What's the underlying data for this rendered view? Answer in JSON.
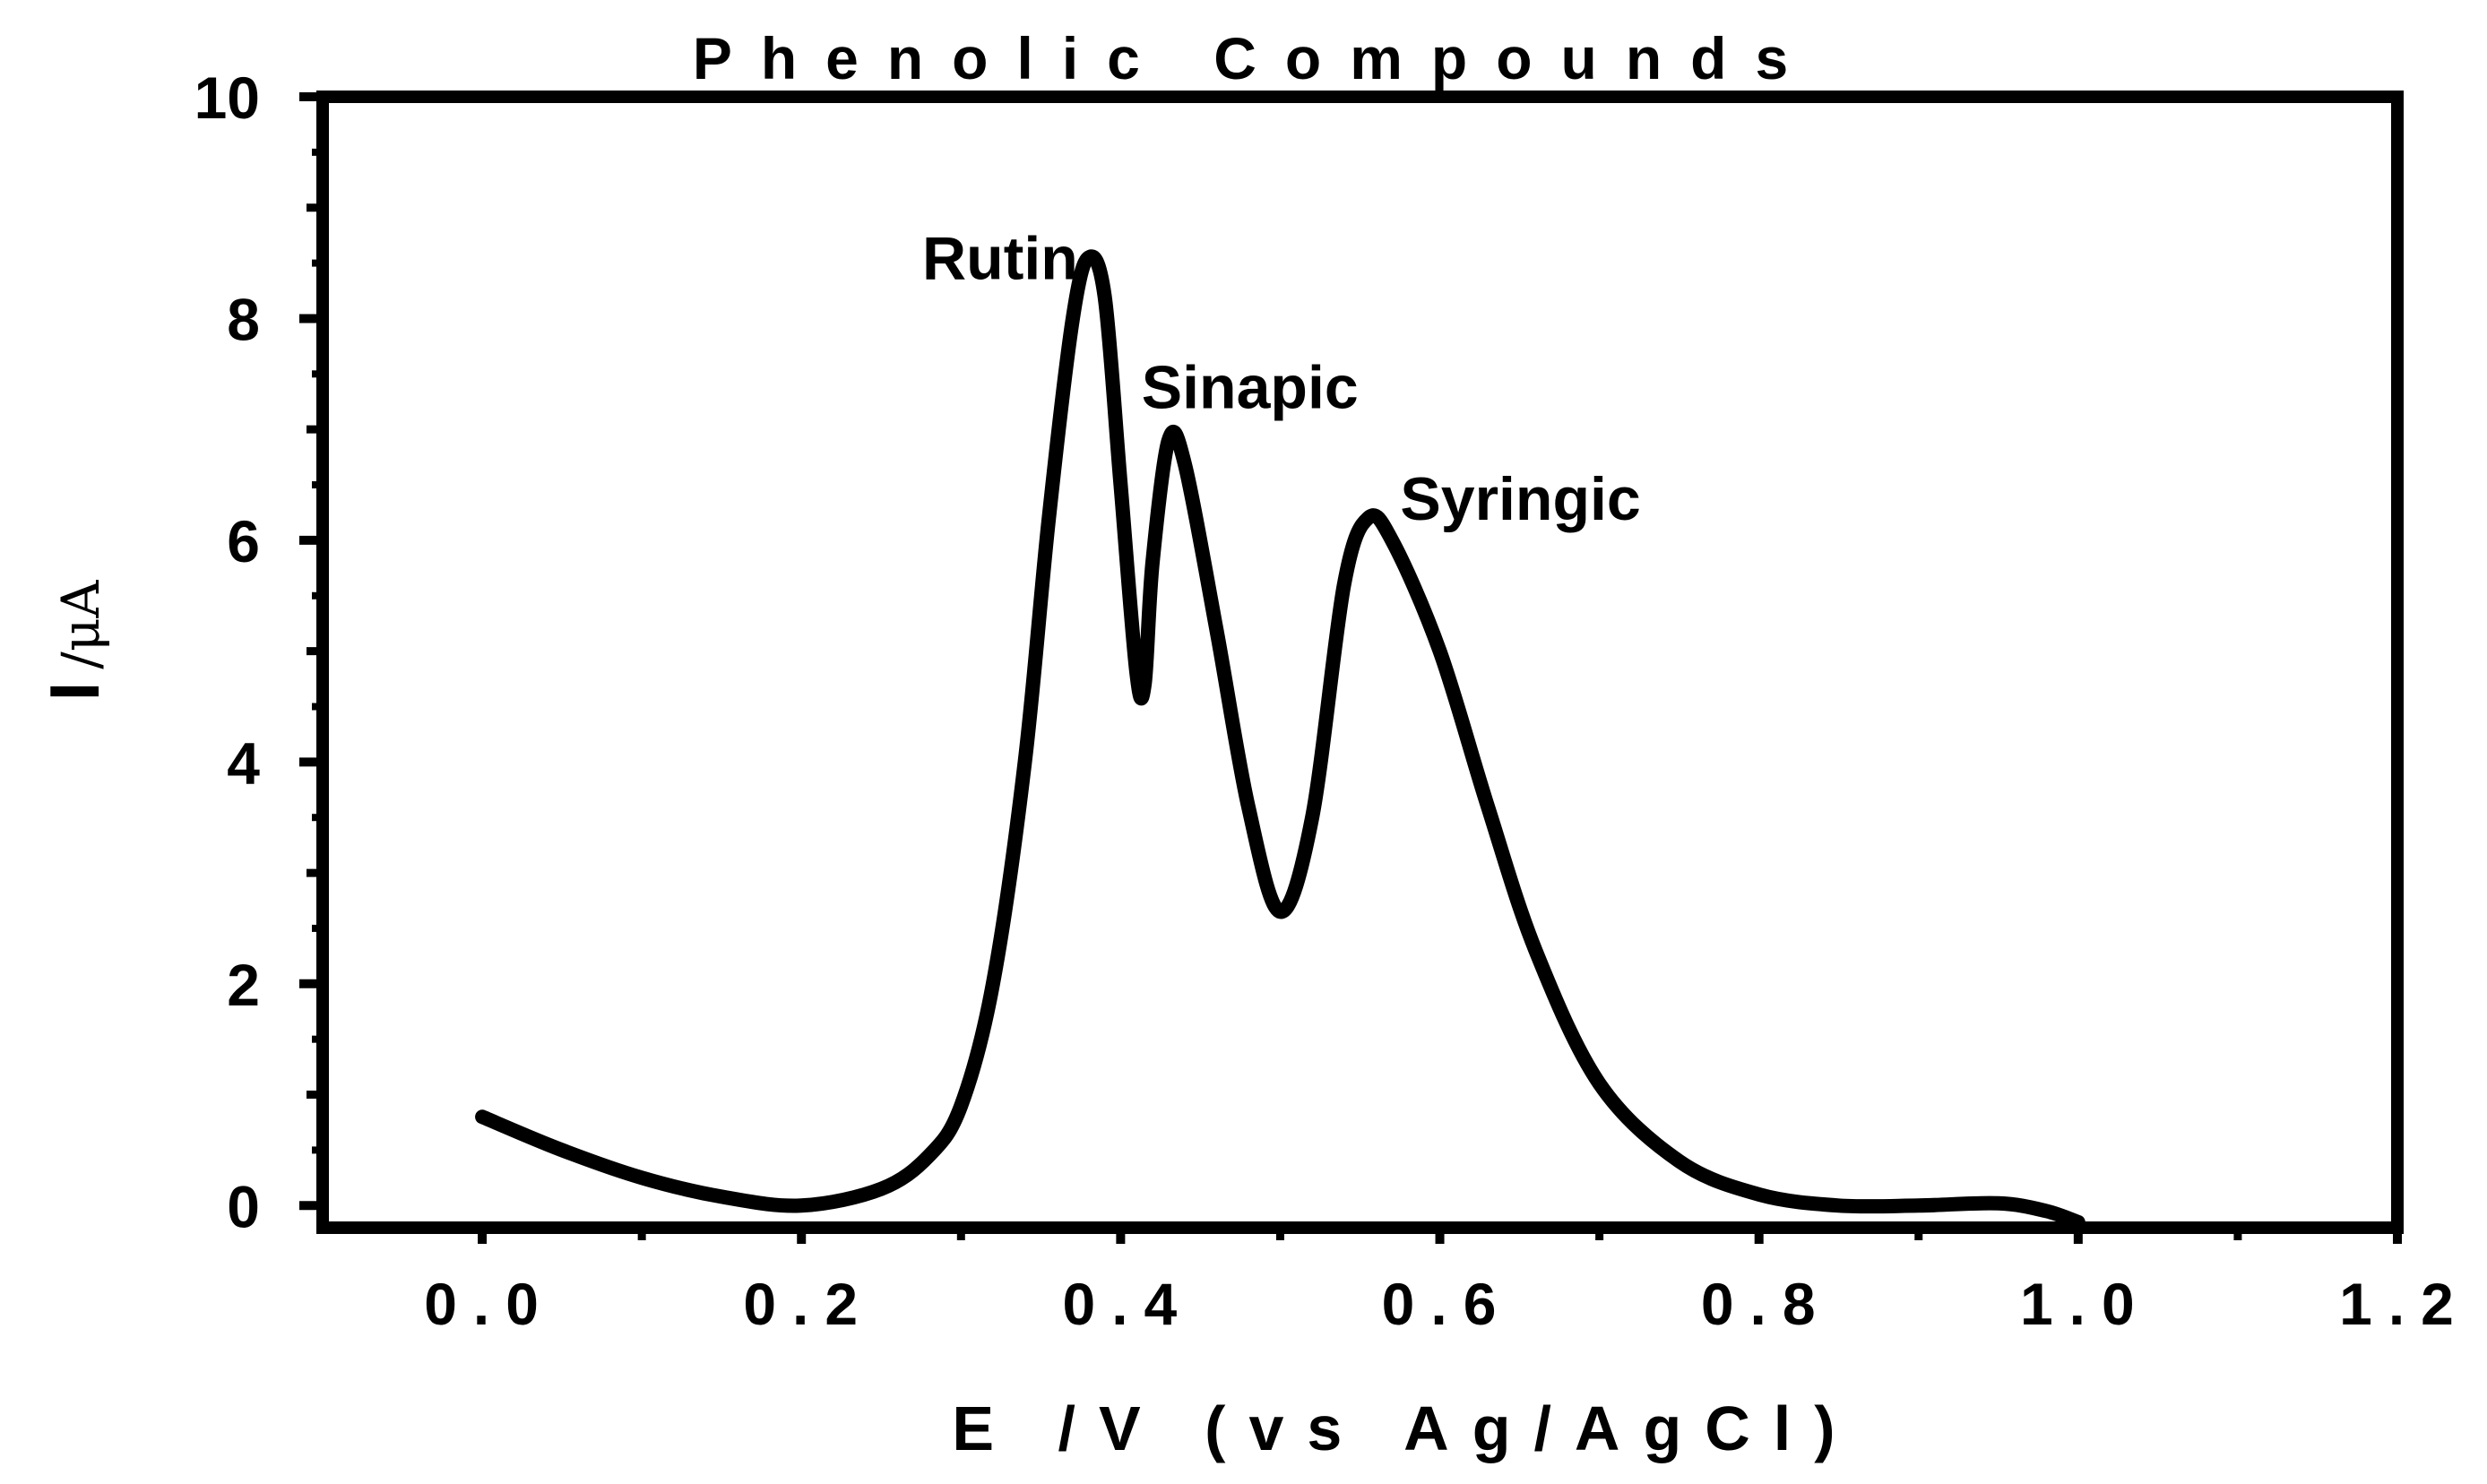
{
  "chart_data": {
    "type": "line",
    "title": "Phenolic Compounds",
    "xlabel": "E /V  (vs Ag/AgCl)",
    "ylabel": "I /μA",
    "ylabel_parts": {
      "symbol": "I",
      "unit": "/μA"
    },
    "xlim": [
      -0.1,
      1.2
    ],
    "ylim": [
      -0.2,
      10
    ],
    "x_ticks": [
      0.0,
      0.2,
      0.4,
      0.6,
      0.8,
      1.0,
      1.2
    ],
    "x_tick_labels": [
      "0.0",
      "0.2",
      "0.4",
      "0.6",
      "0.8",
      "1.0",
      "1.2"
    ],
    "y_ticks": [
      0,
      2,
      4,
      6,
      8,
      10
    ],
    "y_tick_labels": [
      "0",
      "2",
      "4",
      "6",
      "8",
      "10"
    ],
    "grid": false,
    "legend": "none",
    "line_color": "#000000",
    "series": [
      {
        "x": [
          0.0,
          0.05,
          0.1,
          0.15,
          0.2,
          0.25,
          0.28,
          0.3,
          0.32,
          0.34,
          0.355,
          0.37,
          0.38,
          0.39,
          0.4,
          0.41,
          0.415,
          0.42,
          0.43,
          0.44,
          0.46,
          0.48,
          0.5,
          0.52,
          0.54,
          0.555,
          0.57,
          0.6,
          0.63,
          0.66,
          0.7,
          0.75,
          0.8,
          0.85,
          0.9,
          0.95,
          0.98,
          1.0
        ],
        "y": [
          0.8,
          0.5,
          0.25,
          0.08,
          0.0,
          0.15,
          0.45,
          0.9,
          2.0,
          4.0,
          6.2,
          8.0,
          8.55,
          8.2,
          6.5,
          4.8,
          4.7,
          5.8,
          6.9,
          6.7,
          5.2,
          3.6,
          2.65,
          3.5,
          5.6,
          6.2,
          6.0,
          5.0,
          3.6,
          2.3,
          1.1,
          0.4,
          0.1,
          0.0,
          0.0,
          0.02,
          -0.05,
          -0.15
        ]
      }
    ],
    "annotations": [
      {
        "text": "Rutin",
        "x": 0.38,
        "y": 8.55
      },
      {
        "text": "Sinapic",
        "x": 0.43,
        "y": 6.9
      },
      {
        "text": "Syringic",
        "x": 0.555,
        "y": 6.2
      }
    ]
  }
}
